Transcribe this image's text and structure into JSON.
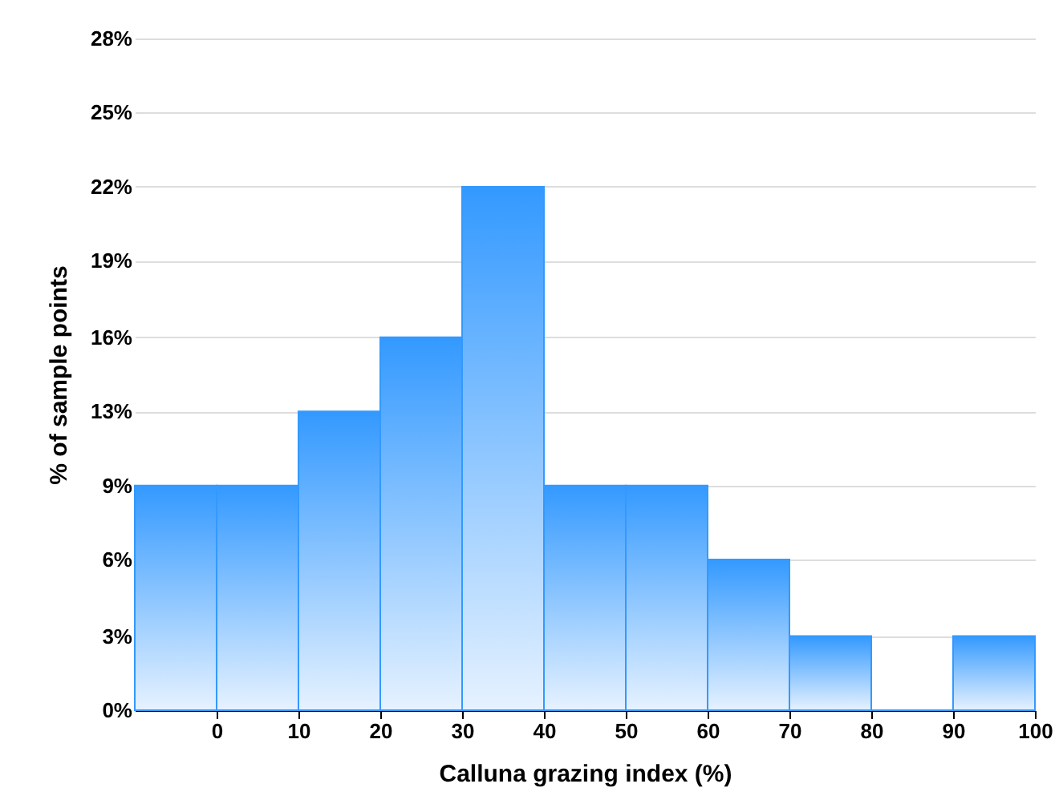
{
  "chart_data": {
    "type": "histogram",
    "xlabel": "Calluna grazing index (%)",
    "ylabel": "% of sample points",
    "bins": [
      -10,
      0,
      10,
      20,
      30,
      40,
      50,
      60,
      70,
      80,
      90,
      100
    ],
    "values": [
      9.4,
      9.4,
      12.5,
      15.6,
      21.9,
      9.4,
      9.4,
      6.3,
      3.1,
      0,
      3.1
    ],
    "color": "#3399ff",
    "xlim": [
      -10,
      100
    ],
    "xticks": [
      0,
      10,
      20,
      30,
      40,
      50,
      60,
      70,
      80,
      90,
      100
    ],
    "ylim": [
      0,
      28.1
    ],
    "yticks": [
      {
        "value": 0,
        "label": "0%"
      },
      {
        "value": 3.1,
        "label": "3%"
      },
      {
        "value": 6.3,
        "label": "6%"
      },
      {
        "value": 9.4,
        "label": "9%"
      },
      {
        "value": 12.5,
        "label": "13%"
      },
      {
        "value": 15.6,
        "label": "16%"
      },
      {
        "value": 18.8,
        "label": "19%"
      },
      {
        "value": 21.9,
        "label": "22%"
      },
      {
        "value": 25,
        "label": "25%"
      },
      {
        "value": 28.1,
        "label": "28%"
      }
    ],
    "grid": "y"
  }
}
